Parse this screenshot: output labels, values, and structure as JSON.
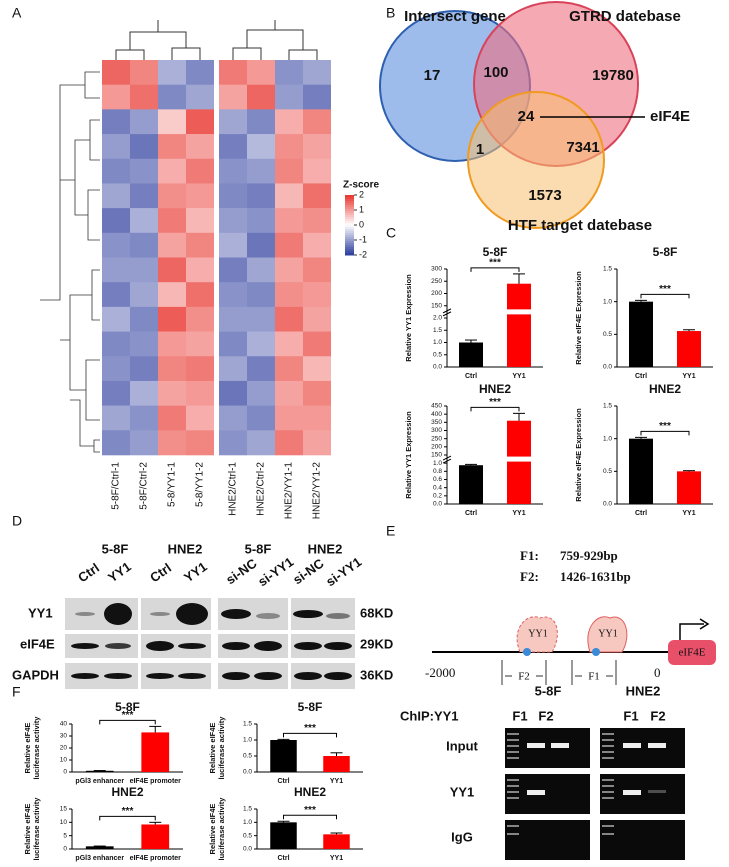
{
  "panels": [
    "A",
    "B",
    "C",
    "D",
    "E",
    "F"
  ],
  "chart_data": [
    {
      "type": "heatmap",
      "columns": [
        "5-8F/Ctrl-1",
        "5-8F/Ctrl-2",
        "5-8/YY1-1",
        "5-8/YY1-2",
        "HNE2/Ctrl-1",
        "HNE2/Ctrl-2",
        "HNE2/YY1-1",
        "HNE2/YY1-2"
      ],
      "values": [
        [
          1.5,
          1.2,
          -0.8,
          -1.2,
          1.3,
          1.0,
          -1.1,
          -0.9
        ],
        [
          1.0,
          1.4,
          -1.2,
          -0.9,
          0.9,
          1.5,
          -1.0,
          -1.3
        ],
        [
          -1.3,
          -1.0,
          0.5,
          1.6,
          -0.9,
          -1.2,
          0.8,
          1.2
        ],
        [
          -1.0,
          -1.4,
          1.2,
          0.9,
          -1.3,
          -0.7,
          1.1,
          0.9
        ],
        [
          -1.2,
          -1.1,
          0.8,
          1.3,
          -1.1,
          -1.0,
          1.2,
          0.8
        ],
        [
          -0.9,
          -1.3,
          1.1,
          1.0,
          -1.2,
          -1.3,
          0.7,
          1.4
        ],
        [
          -1.4,
          -0.8,
          1.3,
          0.7,
          -1.0,
          -1.1,
          1.0,
          1.1
        ],
        [
          -1.1,
          -1.2,
          0.9,
          1.2,
          -0.8,
          -1.4,
          1.3,
          0.8
        ],
        [
          -1.0,
          -1.0,
          1.5,
          0.8,
          -1.3,
          -0.9,
          0.9,
          1.2
        ],
        [
          -1.3,
          -0.9,
          0.7,
          1.4,
          -1.1,
          -1.2,
          1.1,
          1.0
        ],
        [
          -0.8,
          -1.2,
          1.6,
          1.1,
          -1.0,
          -1.0,
          1.4,
          0.9
        ],
        [
          -1.2,
          -1.1,
          1.0,
          0.9,
          -1.2,
          -0.8,
          0.8,
          1.3
        ],
        [
          -1.1,
          -1.3,
          1.2,
          1.3,
          -0.9,
          -1.3,
          1.2,
          0.7
        ],
        [
          -1.3,
          -0.8,
          0.9,
          1.0,
          -1.4,
          -1.0,
          0.9,
          1.2
        ],
        [
          -0.9,
          -1.1,
          1.3,
          0.8,
          -1.0,
          -1.2,
          1.0,
          1.0
        ],
        [
          -1.2,
          -1.0,
          1.1,
          1.2,
          -1.1,
          -0.9,
          1.3,
          0.9
        ]
      ],
      "legend_title": "Z-score",
      "legend_ticks": [
        2,
        1,
        0,
        -1,
        -2
      ],
      "colors": [
        "#2a3a9c",
        "#ffffff",
        "#e8332c"
      ]
    },
    {
      "type": "bar",
      "title": "5-8F",
      "ylabel": [
        "Relative YY1 Expression"
      ],
      "categories": [
        "Ctrl",
        "YY1"
      ],
      "values": [
        1.0,
        240
      ],
      "errors": [
        0.1,
        40
      ],
      "colors": [
        "#000000",
        "#ff0000"
      ],
      "annotation": "***",
      "ylim": [
        0,
        300
      ],
      "yticks": [
        {
          "value": 0,
          "label": "0.0"
        },
        0.5,
        {
          "value": 1,
          "label": "1.0"
        },
        1.5,
        {
          "value": 2,
          "label": "2.0"
        },
        150,
        200,
        250,
        300
      ]
    },
    {
      "type": "bar",
      "title": "5-8F",
      "ylabel": [
        "Relative eIF4E Expression"
      ],
      "categories": [
        "Ctrl",
        "YY1"
      ],
      "values": [
        1.0,
        0.55
      ],
      "errors": [
        0.02,
        0.02
      ],
      "colors": [
        "#000000",
        "#ff0000"
      ],
      "annotation": "***",
      "ylim": [
        0,
        1.5
      ],
      "yticks": [
        {
          "value": 0,
          "label": "0.0"
        },
        0.5,
        {
          "value": 1,
          "label": "1.0"
        },
        1.5
      ]
    },
    {
      "type": "bar",
      "title": "HNE2",
      "ylabel": [
        "Relative YY1 Expression"
      ],
      "categories": [
        "Ctrl",
        "YY1"
      ],
      "values": [
        0.95,
        360
      ],
      "errors": [
        0.02,
        45
      ],
      "colors": [
        "#000000",
        "#ff0000"
      ],
      "annotation": "***",
      "ylim": [
        0,
        450
      ],
      "yticks": [
        {
          "value": 0,
          "label": "0.0"
        },
        0.2,
        0.4,
        0.6,
        0.8,
        {
          "value": 1,
          "label": "1.0"
        },
        150,
        200,
        250,
        300,
        350,
        400,
        450
      ]
    },
    {
      "type": "bar",
      "title": "HNE2",
      "ylabel": [
        "Relative eIF4E Expression"
      ],
      "categories": [
        "Ctrl",
        "YY1"
      ],
      "values": [
        1.0,
        0.5
      ],
      "errors": [
        0.02,
        0.01
      ],
      "colors": [
        "#000000",
        "#ff0000"
      ],
      "annotation": "***",
      "ylim": [
        0,
        1.5
      ],
      "yticks": [
        {
          "value": 0,
          "label": "0.0"
        },
        0.5,
        {
          "value": 1,
          "label": "1.0"
        },
        1.5
      ]
    },
    {
      "type": "bar",
      "title": "5-8F",
      "ylabel": [
        "Relative eIF4E",
        "luciferase activity"
      ],
      "categories": [
        "pGl3 enhancer",
        "eIF4E promoter"
      ],
      "values": [
        1,
        33
      ],
      "errors": [
        0.2,
        5
      ],
      "colors": [
        "#000000",
        "#ff0000"
      ],
      "annotation": "***",
      "ylim": [
        0,
        40
      ],
      "yticks": [
        0,
        10,
        20,
        30,
        40
      ]
    },
    {
      "type": "bar",
      "title": "5-8F",
      "ylabel": [
        "Relative eIF4E",
        "luciferase activity"
      ],
      "categories": [
        "Ctrl",
        "YY1"
      ],
      "values": [
        1.0,
        0.5
      ],
      "errors": [
        0.02,
        0.1
      ],
      "colors": [
        "#000000",
        "#ff0000"
      ],
      "annotation": "***",
      "ylim": [
        0,
        1.5
      ],
      "yticks": [
        {
          "value": 0,
          "label": "0.0"
        },
        0.5,
        {
          "value": 1,
          "label": "1.0"
        },
        1.5
      ]
    },
    {
      "type": "bar",
      "title": "HNE2",
      "ylabel": [
        "Relative eIF4E",
        "luciferase activity"
      ],
      "categories": [
        "pGl3 enhancer",
        "eIF4E promoter"
      ],
      "values": [
        1,
        9.2
      ],
      "errors": [
        0.1,
        0.8
      ],
      "colors": [
        "#000000",
        "#ff0000"
      ],
      "annotation": "***",
      "ylim": [
        0,
        15
      ],
      "yticks": [
        0,
        5,
        10,
        15
      ]
    },
    {
      "type": "bar",
      "title": "HNE2",
      "ylabel": [
        "Relative eIF4E",
        "luciferase activity"
      ],
      "categories": [
        "Ctrl",
        "YY1"
      ],
      "values": [
        1.0,
        0.55
      ],
      "errors": [
        0.04,
        0.05
      ],
      "colors": [
        "#000000",
        "#ff0000"
      ],
      "annotation": "***",
      "ylim": [
        0,
        1.5
      ],
      "yticks": [
        {
          "value": 0,
          "label": "0.0"
        },
        0.5,
        {
          "value": 1,
          "label": "1.0"
        },
        1.5
      ]
    }
  ],
  "venn": {
    "sets": [
      "Intersect gene",
      "GTRD datebase",
      "HTF target datebase"
    ],
    "regions": [
      17,
      100,
      19780,
      24,
      1,
      7341,
      1573
    ],
    "callout": "eIF4E"
  },
  "blot": {
    "cell_lines": [
      "5-8F",
      "HNE2",
      "5-8F",
      "HNE2"
    ],
    "lanes": [
      "Ctrl",
      "YY1",
      "Ctrl",
      "YY1",
      "si-NC",
      "si-YY1",
      "si-NC",
      "si-YY1"
    ],
    "proteins": [
      "YY1",
      "eIF4E",
      "GAPDH"
    ],
    "sizes": [
      "68KD",
      "29KD",
      "36KD"
    ]
  },
  "promoter": {
    "fragments": [
      {
        "name": "F1:",
        "range": "759-929bp"
      },
      {
        "name": "F2:",
        "range": "1426-1631bp"
      }
    ],
    "start": "-2000",
    "end": "0",
    "gene": "eIF4E",
    "factor": "YY1",
    "markers": [
      "F2",
      "F1"
    ]
  },
  "chip": {
    "label": "ChIP:YY1",
    "cell_lines": [
      "5-8F",
      "HNE2"
    ],
    "fragments": [
      "F1",
      "F2"
    ],
    "rows": [
      "Input",
      "YY1",
      "IgG"
    ]
  }
}
